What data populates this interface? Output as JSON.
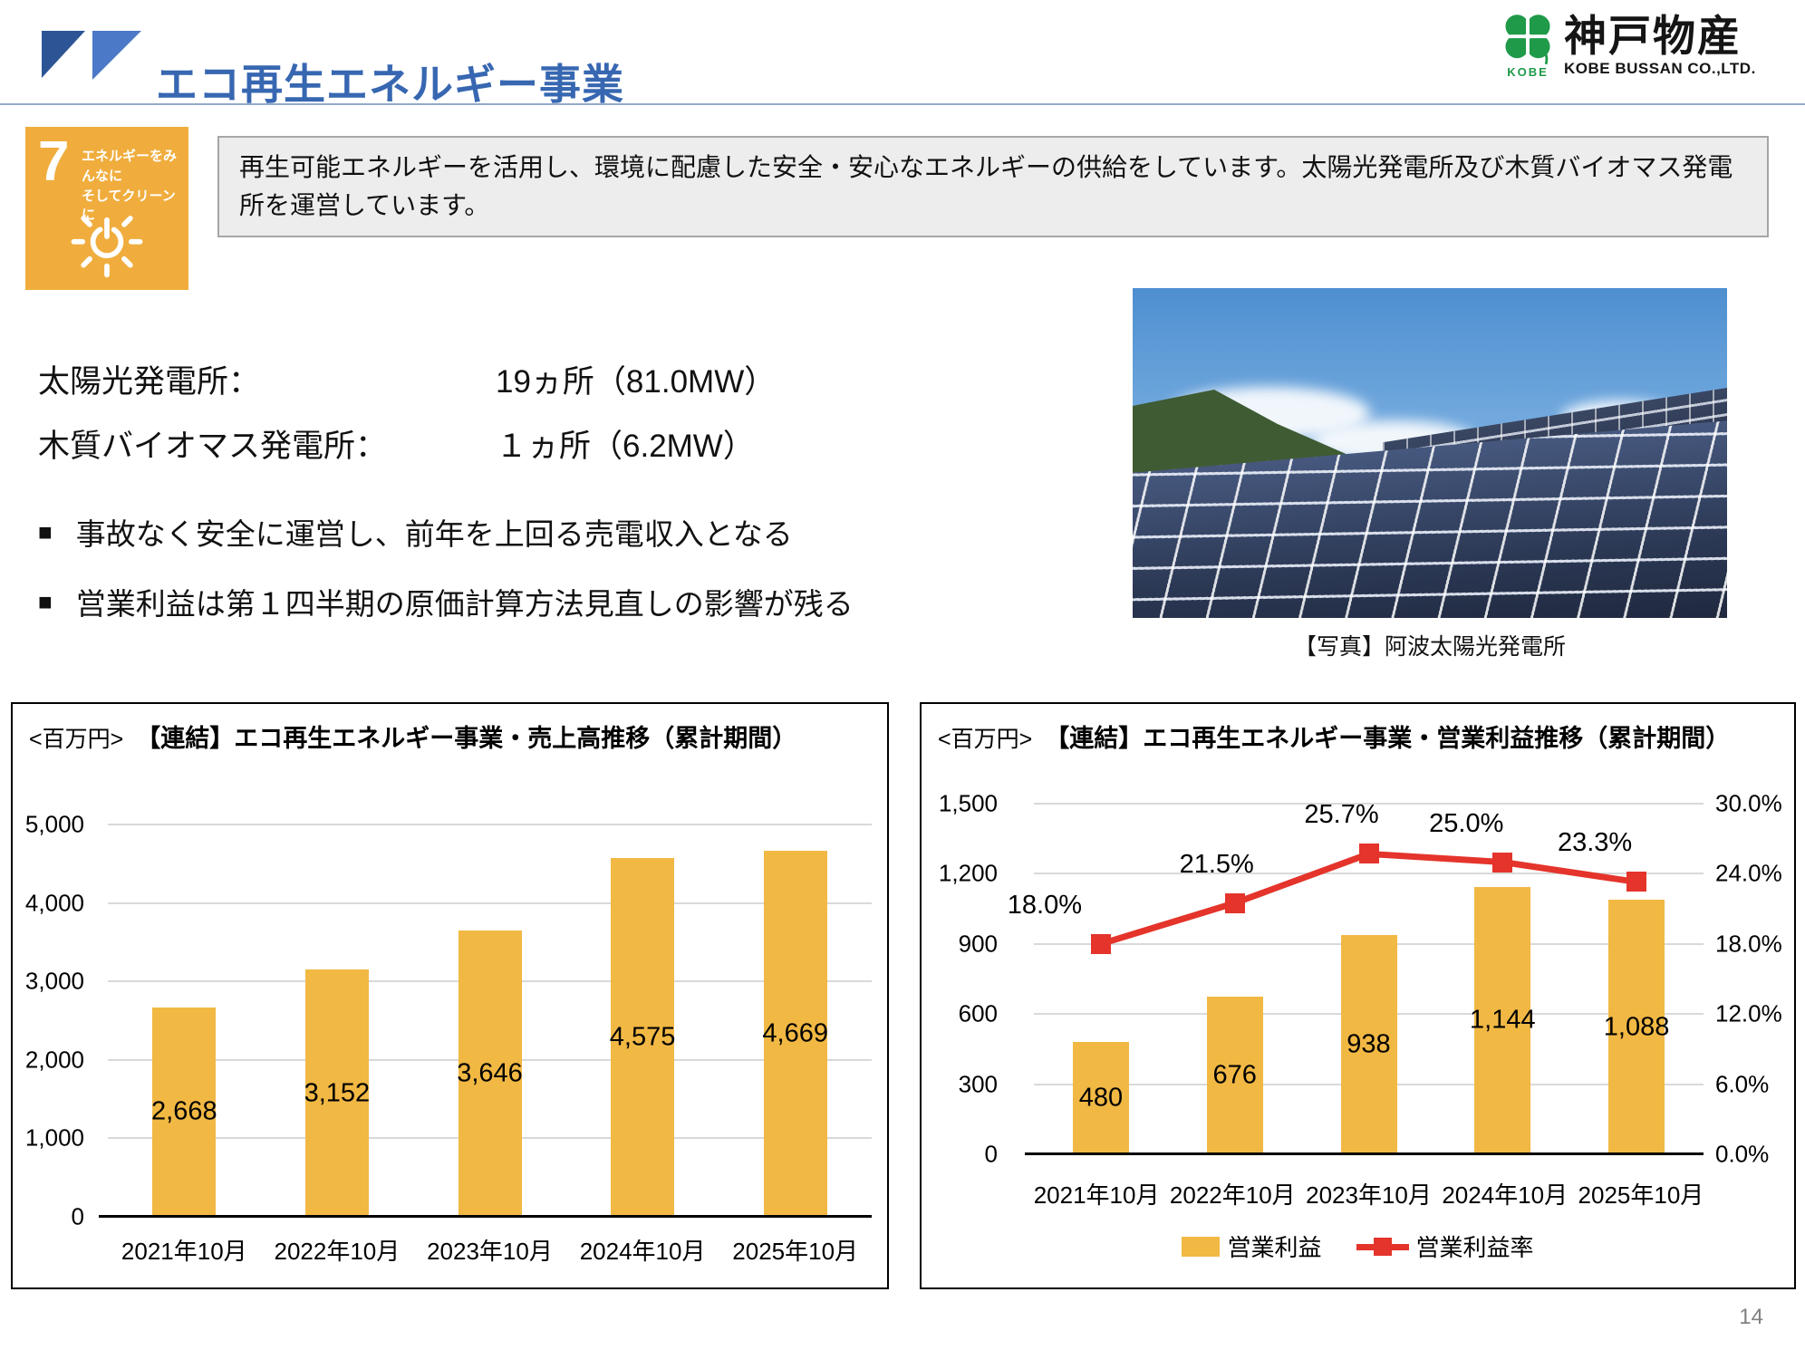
{
  "header": {
    "title": "エコ再生エネルギー事業",
    "logo": {
      "mark_text": "KOBE",
      "company_jp": "神戸物産",
      "company_en": "KOBE BUSSAN CO.,LTD."
    }
  },
  "sdg_badge": {
    "number": "7",
    "title_line1": "エネルギーをみんなに",
    "title_line2": "そしてクリーンに"
  },
  "intro_box": {
    "text": "再生可能エネルギーを活用し、環境に配慮した安全・安心なエネルギーの供給をしています。太陽光発電所及び木質バイオマス発電所を運営しています。"
  },
  "facts": [
    {
      "label": "太陽光発電所：",
      "value": "19ヵ所（81.0MW）"
    },
    {
      "label": "木質バイオマス発電所：",
      "value": "１ヵ所（6.2MW）"
    }
  ],
  "bullets": [
    {
      "marker": "■",
      "text": "事故なく安全に運営し、前年を上回る売電収入となる"
    },
    {
      "marker": "■",
      "text": "営業利益は第１四半期の原価計算方法見直しの影響が残る"
    }
  ],
  "photo": {
    "caption": "【写真】阿波太陽光発電所"
  },
  "page_number": "14",
  "colors": {
    "accent_blue": "#3767B1",
    "bar_yellow": "#F1B844",
    "line_red": "#E4342B",
    "sdg_orange": "#F0AD3D",
    "logo_green": "#1F9A49"
  },
  "chart_data": [
    {
      "type": "bar",
      "title": "【連結】エコ再生エネルギー事業・売上高推移（累計期間）",
      "unit_label": "<百万円>",
      "categories": [
        "2021年10月",
        "2022年10月",
        "2023年10月",
        "2024年10月",
        "2025年10月"
      ],
      "values": [
        2668,
        3152,
        3646,
        4575,
        4669
      ],
      "value_labels": [
        "2,668",
        "3,152",
        "3,646",
        "4,575",
        "4,669"
      ],
      "ylabel": "百万円",
      "ylim": [
        0,
        5000
      ],
      "yticks": [
        "0",
        "1,000",
        "2,000",
        "3,000",
        "4,000",
        "5,000"
      ],
      "grid": true,
      "legend_position": "none",
      "bar_color": "#F1B844"
    },
    {
      "type": "bar+line",
      "title": "【連結】エコ再生エネルギー事業・営業利益推移（累計期間）",
      "unit_label": "<百万円>",
      "categories": [
        "2021年10月",
        "2022年10月",
        "2023年10月",
        "2024年10月",
        "2025年10月"
      ],
      "series": [
        {
          "name": "営業利益",
          "type": "bar",
          "axis": "left",
          "values": [
            480,
            676,
            938,
            1144,
            1088
          ],
          "value_labels": [
            "480",
            "676",
            "938",
            "1,144",
            "1,088"
          ],
          "color": "#F1B844"
        },
        {
          "name": "営業利益率",
          "type": "line",
          "axis": "right",
          "values": [
            18.0,
            21.5,
            25.7,
            25.0,
            23.3
          ],
          "value_labels": [
            "18.0%",
            "21.5%",
            "25.7%",
            "25.0%",
            "23.3%"
          ],
          "color": "#E4342B"
        }
      ],
      "ylim_left": [
        0,
        1500
      ],
      "yticks_left": [
        "0",
        "300",
        "600",
        "900",
        "1,200",
        "1,500"
      ],
      "ylim_right": [
        0,
        30
      ],
      "yticks_right": [
        "0.0%",
        "6.0%",
        "12.0%",
        "18.0%",
        "24.0%",
        "30.0%"
      ],
      "grid": true,
      "legend_position": "bottom"
    }
  ]
}
